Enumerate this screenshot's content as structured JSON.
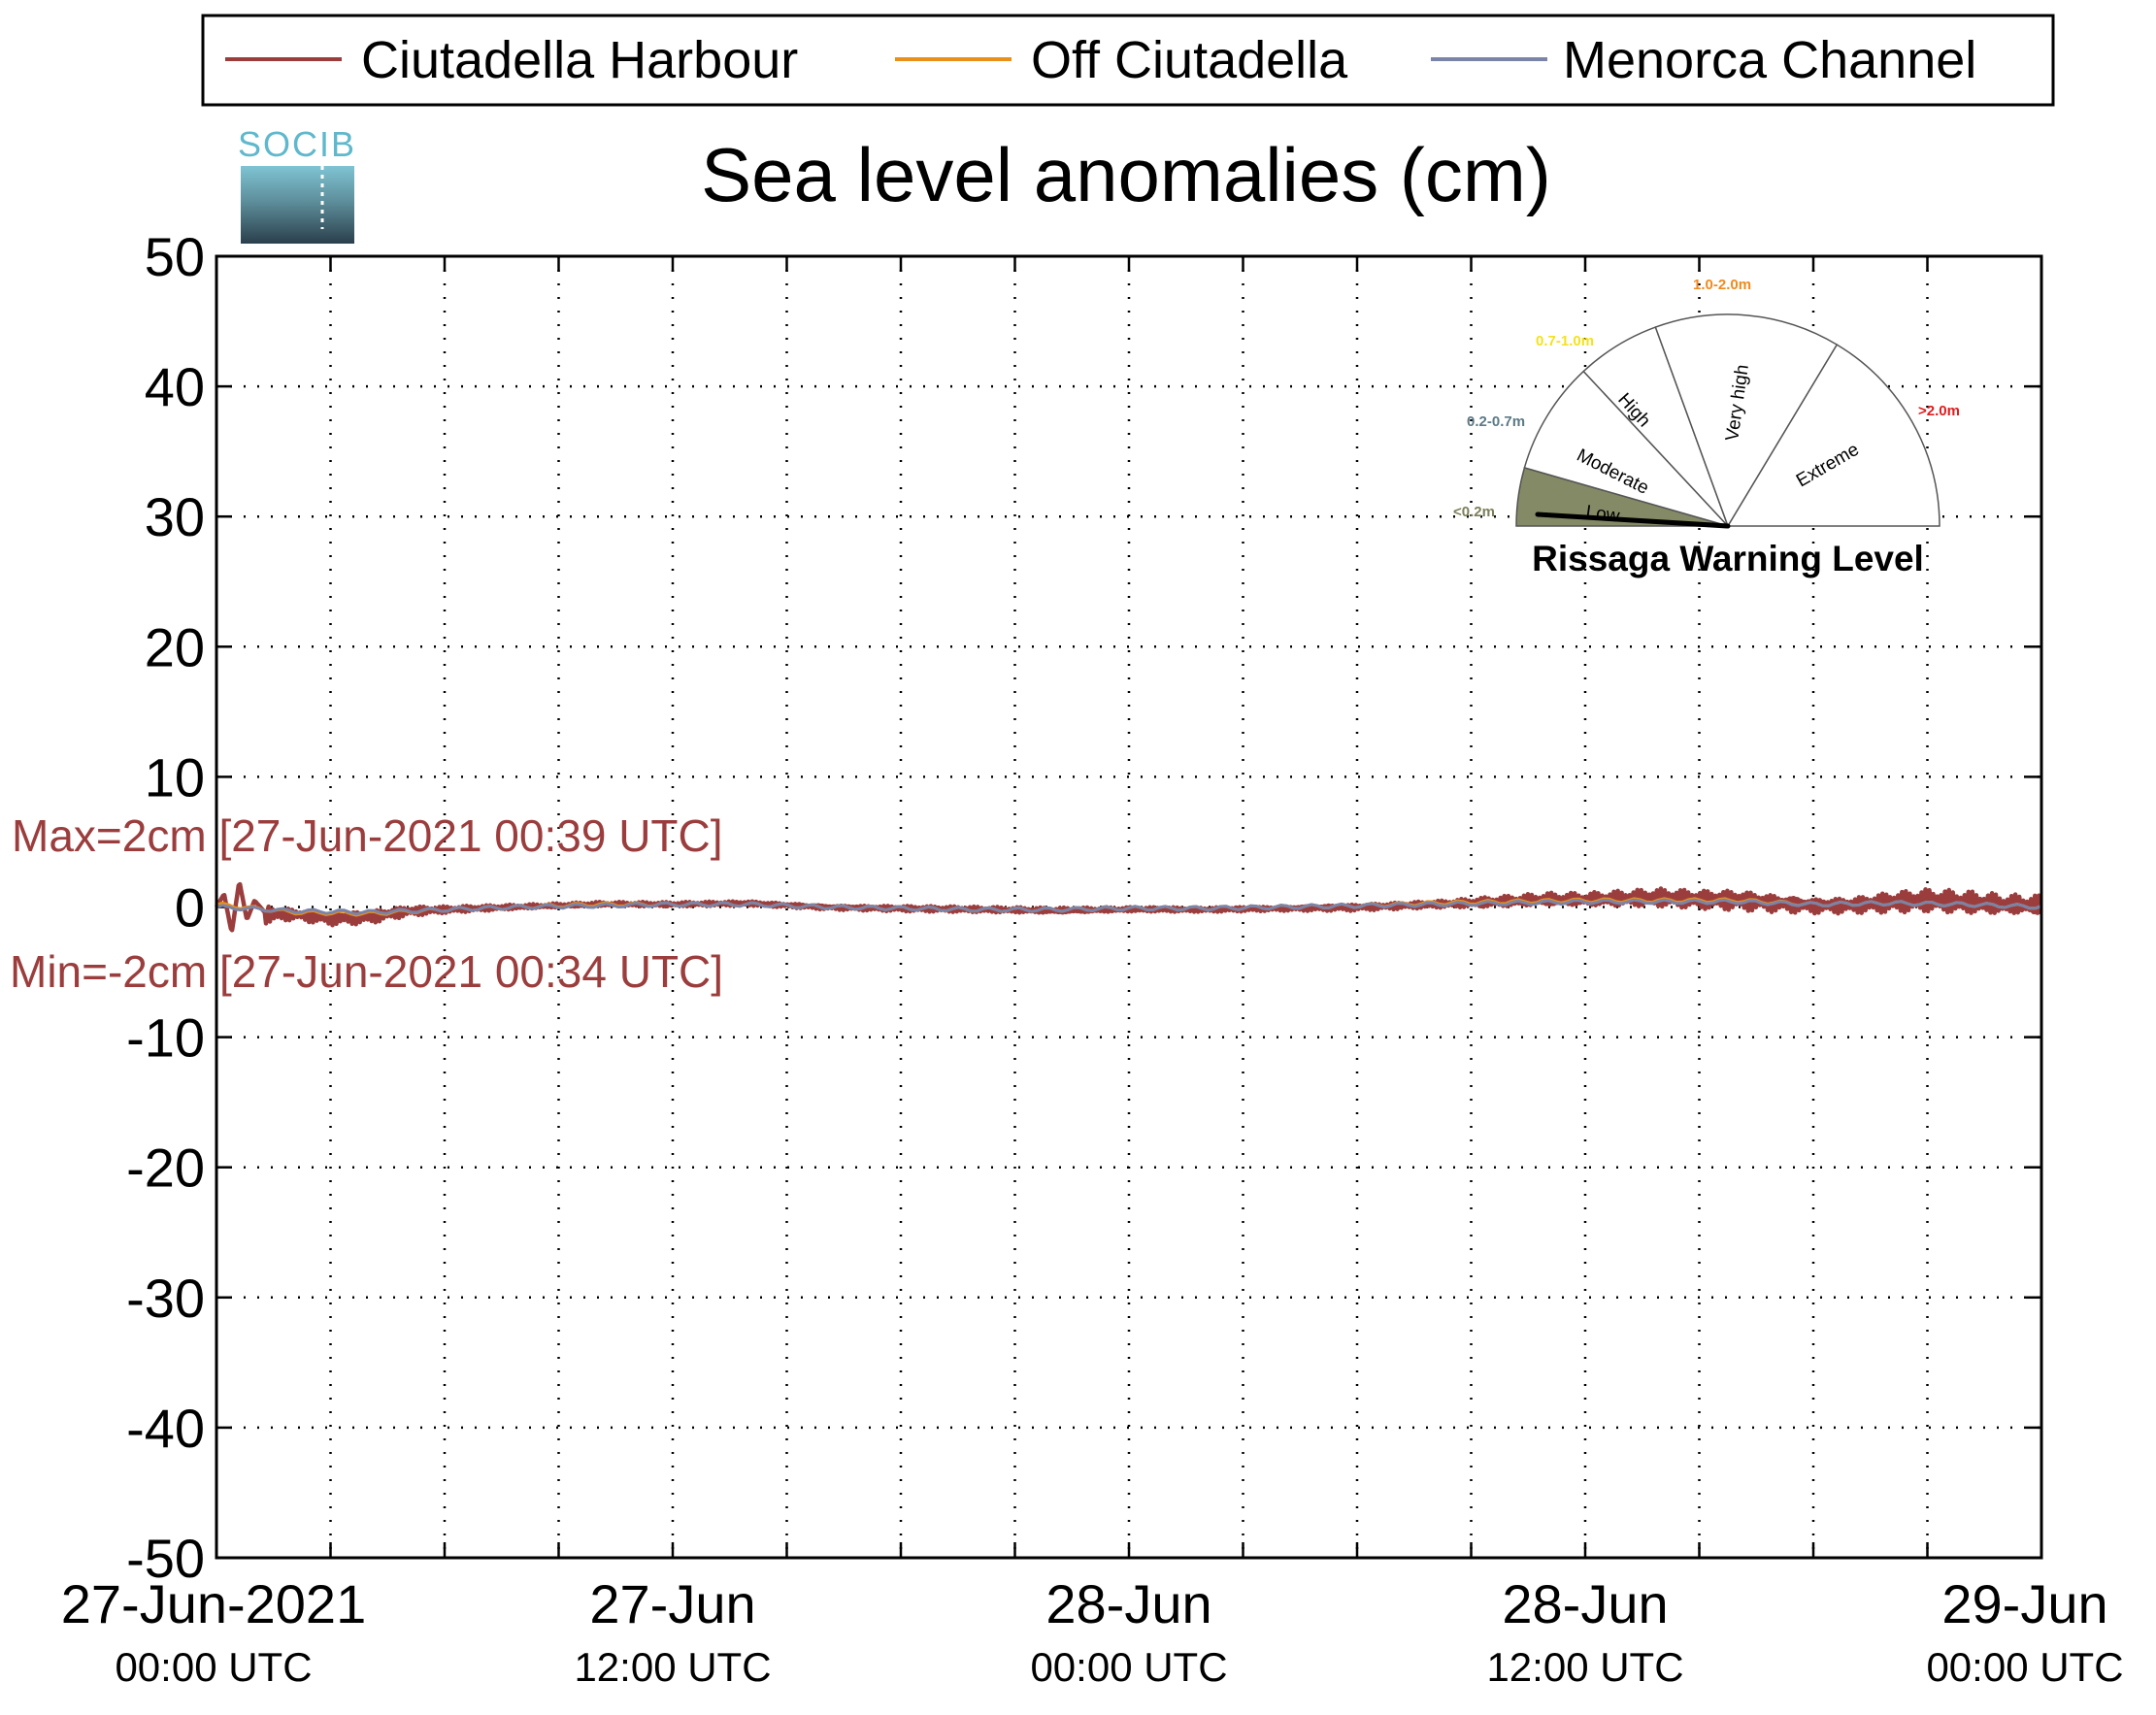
{
  "chart_data": {
    "type": "line",
    "title": "Sea level anomalies (cm)",
    "ylim": [
      -50,
      50
    ],
    "yticks": [
      50,
      40,
      30,
      20,
      10,
      0,
      -10,
      -20,
      -30,
      -40,
      -50
    ],
    "ytick_labels": [
      "50",
      "40",
      "30",
      "20",
      "10",
      "0",
      "-10",
      "-20",
      "-30",
      "-40",
      "-50"
    ],
    "xlim": [
      "27-Jun-2021 00:00",
      "29-Jun-2021 00:00"
    ],
    "xticks_hours": [
      0,
      3,
      6,
      9,
      12,
      15,
      18,
      21,
      24,
      27,
      30,
      33,
      36,
      39,
      42,
      45,
      48
    ],
    "xtick_labels": [
      {
        "hour": 0,
        "line1": "27-Jun-2021",
        "line2": "00:00 UTC"
      },
      {
        "hour": 12,
        "line1": "27-Jun",
        "line2": "12:00 UTC"
      },
      {
        "hour": 24,
        "line1": "28-Jun",
        "line2": "00:00 UTC"
      },
      {
        "hour": 36,
        "line1": "28-Jun",
        "line2": "12:00 UTC"
      },
      {
        "hour": 48,
        "line1": "29-Jun",
        "line2": "00:00 UTC"
      }
    ],
    "grid": true,
    "legend_position": "top",
    "series": [
      {
        "name": "Ciutadella Harbour",
        "color": "#9b3d3d",
        "width": 4.5,
        "x": [
          0,
          0.2,
          0.4,
          0.6,
          0.8,
          1.0,
          1.3,
          2,
          3,
          4,
          5,
          6,
          8,
          10,
          12,
          14,
          16,
          18,
          20,
          22,
          24,
          26,
          28,
          30,
          32,
          33,
          34,
          35,
          36,
          37,
          38,
          39,
          40,
          41,
          42,
          43,
          44,
          45,
          46,
          47,
          48
        ],
        "y": [
          0,
          1,
          -2,
          2,
          -1,
          0.5,
          -0.5,
          -0.5,
          -0.8,
          -0.7,
          -0.3,
          -0.2,
          0,
          0.2,
          0.2,
          0.3,
          0,
          -0.1,
          -0.2,
          -0.3,
          -0.2,
          -0.2,
          -0.1,
          0,
          0.2,
          0.3,
          0.4,
          0.5,
          0.5,
          0.6,
          0.7,
          0.6,
          0.6,
          0.4,
          0.2,
          0.2,
          0.4,
          0.5,
          0.3,
          0.1,
          0
        ],
        "amp": [
          0.3,
          0.3,
          0.3,
          0.3,
          0.3,
          1.0,
          0.8,
          0.5,
          0.6,
          0.6,
          0.45,
          0.3,
          0.2,
          0.2,
          0.2,
          0.2,
          0.2,
          0.25,
          0.25,
          0.25,
          0.2,
          0.2,
          0.2,
          0.3,
          0.3,
          0.4,
          0.5,
          0.6,
          0.6,
          0.7,
          0.8,
          0.8,
          0.9,
          0.8,
          0.7,
          0.7,
          0.9,
          1.0,
          1.0,
          0.9,
          0.9
        ]
      },
      {
        "name": "Off Ciutadella",
        "color": "#e8901a",
        "width": 3,
        "x": [
          0,
          2,
          4,
          6,
          8,
          10,
          12,
          14,
          16,
          18,
          20,
          22,
          24,
          26,
          28,
          30,
          32,
          34,
          36,
          38,
          40,
          42,
          44,
          46,
          48
        ],
        "y": [
          0.2,
          -0.4,
          -0.5,
          -0.2,
          0,
          0.2,
          0.2,
          0.2,
          0,
          -0.1,
          -0.2,
          -0.2,
          -0.1,
          -0.1,
          0,
          0.1,
          0.3,
          0.4,
          0.5,
          0.5,
          0.5,
          0.2,
          0.3,
          0.2,
          0
        ]
      },
      {
        "name": "Menorca Channel",
        "color": "#7a84a8",
        "width": 3,
        "x": [
          0,
          2,
          4,
          6,
          8,
          10,
          12,
          14,
          16,
          18,
          20,
          22,
          24,
          26,
          28,
          30,
          32,
          34,
          36,
          38,
          40,
          42,
          44,
          46,
          48
        ],
        "y": [
          0,
          -0.3,
          -0.4,
          -0.2,
          0,
          0.1,
          0.2,
          0.2,
          0,
          -0.1,
          -0.2,
          -0.2,
          -0.1,
          -0.1,
          0,
          0.1,
          0.2,
          0.3,
          0.4,
          0.4,
          0.4,
          0.2,
          0.3,
          0.2,
          0
        ]
      }
    ],
    "annotations": {
      "max": {
        "text": "Max=2cm [27-Jun-2021 00:39 UTC]",
        "color": "#9b3d3d"
      },
      "min": {
        "text": "Min=-2cm [27-Jun-2021 00:34 UTC]",
        "color": "#9b3d3d"
      }
    },
    "logo": {
      "text": "SOCIB"
    },
    "warning_gauge": {
      "title": "Rissaga Warning Level",
      "current_level": "Low",
      "segments": [
        {
          "name": "Low",
          "range": "<0.2m",
          "range_color": "#7d7f5a",
          "fill": "#858a66"
        },
        {
          "name": "Moderate",
          "range": "0.2-0.7m",
          "range_color": "#5c7a86",
          "fill": "#ffffff"
        },
        {
          "name": "High",
          "range": "0.7-1.0m",
          "range_color": "#f4e21c",
          "fill": "#ffffff"
        },
        {
          "name": "Very high",
          "range": "1.0-2.0m",
          "range_color": "#f08a1c",
          "fill": "#ffffff"
        },
        {
          "name": "Extreme",
          "range": ">2.0m",
          "range_color": "#e01c1c",
          "fill": "#ffffff"
        }
      ]
    }
  }
}
